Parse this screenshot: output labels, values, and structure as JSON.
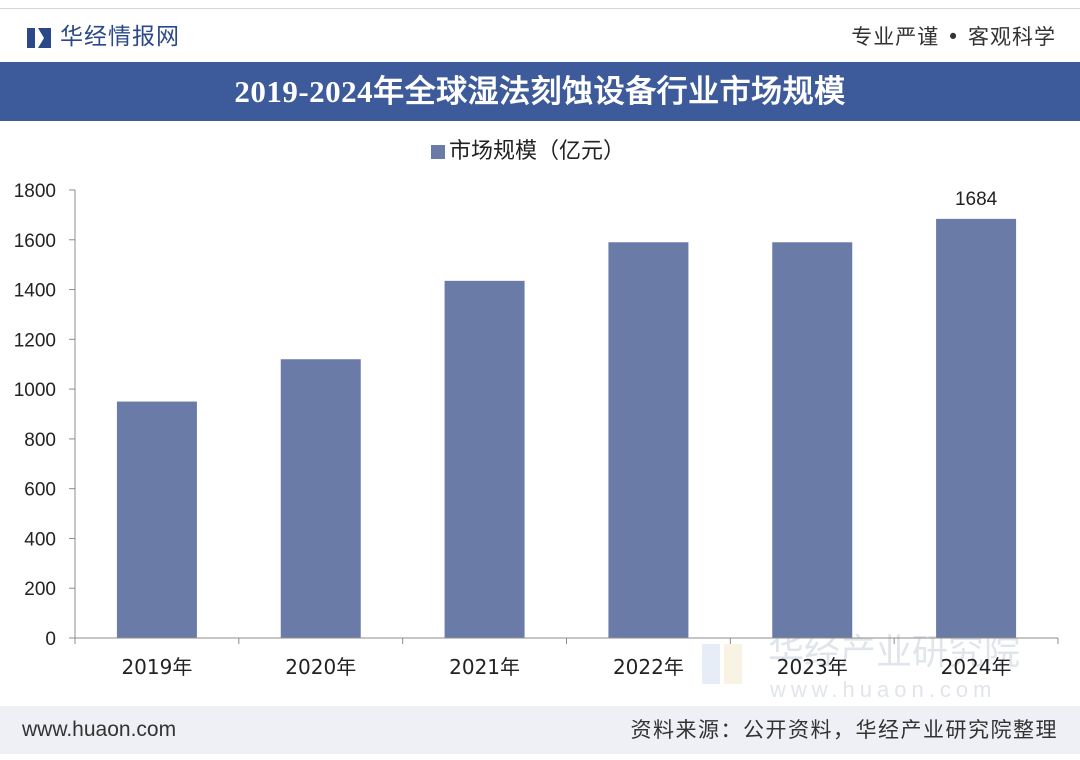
{
  "header": {
    "logo_icon": "huajing-logo-icon",
    "brand_name": "华经情报网",
    "slogan": "专业严谨 • 客观科学"
  },
  "colors": {
    "brand": "#2b4888",
    "title_bar": "#3d5a9a",
    "title_text": "#ffffff",
    "footer_bg": "#eef0f5"
  },
  "chart_data": {
    "type": "bar",
    "title": "2019-2024年全球湿法刻蚀设备行业市场规模",
    "xlabel": "",
    "ylabel": "",
    "categories": [
      "2019年",
      "2020年",
      "2021年",
      "2022年",
      "2023年",
      "2024年"
    ],
    "series": [
      {
        "name": "市场规模（亿元）",
        "color": "#6a7ba8",
        "values": [
          950,
          1120,
          1435,
          1590,
          1590,
          1684
        ]
      }
    ],
    "data_labels": [
      "",
      "",
      "",
      "",
      "",
      "1684"
    ],
    "ylim": [
      0,
      1800
    ],
    "yticks": [
      0,
      200,
      400,
      600,
      800,
      1000,
      1200,
      1400,
      1600,
      1800
    ],
    "grid": false,
    "legend_position": "top-center"
  },
  "watermark": {
    "text": "华经产业研究院",
    "url": "www.huaon.com"
  },
  "footer": {
    "website": "www.huaon.com",
    "source": "资料来源：公开资料，华经产业研究院整理"
  }
}
